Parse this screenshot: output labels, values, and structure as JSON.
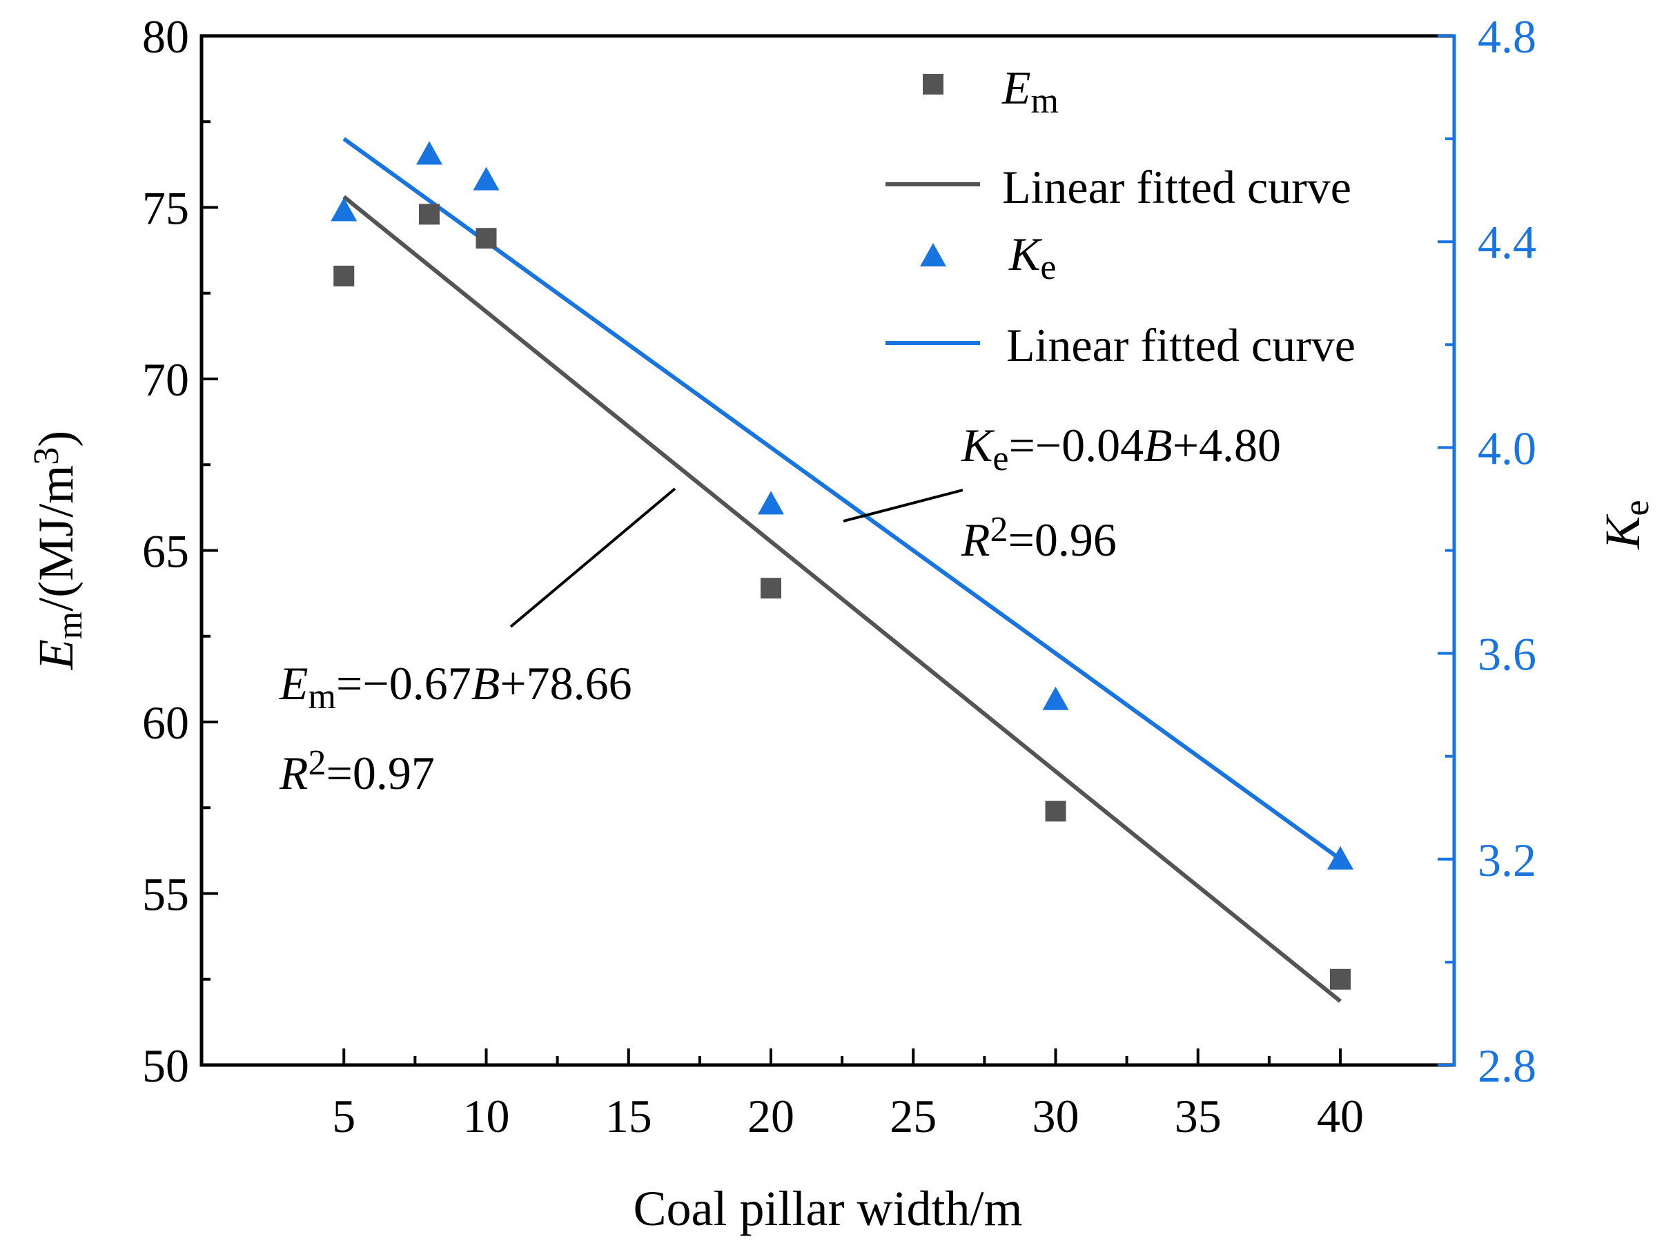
{
  "chart_data": {
    "type": "scatter",
    "x_axis": {
      "label": "Coal pillar width/m",
      "range": [
        0,
        44
      ],
      "ticks": [
        5,
        10,
        15,
        20,
        25,
        30,
        35,
        40
      ],
      "tick_labels": [
        "5",
        "10",
        "15",
        "20",
        "25",
        "30",
        "35",
        "40"
      ]
    },
    "y_left": {
      "label_main": "E",
      "label_sub": "m",
      "label_rest": "/(MJ/m",
      "label_sup": "3",
      "label_end": ")",
      "range": [
        50,
        80
      ],
      "ticks": [
        50,
        55,
        60,
        65,
        70,
        75,
        80
      ],
      "tick_labels": [
        "50",
        "55",
        "60",
        "65",
        "70",
        "75",
        "80"
      ]
    },
    "y_right": {
      "label_main": "K",
      "label_sub": "e",
      "range": [
        2.8,
        4.8
      ],
      "ticks": [
        2.8,
        3.2,
        3.6,
        4.0,
        4.4,
        4.8
      ],
      "tick_labels": [
        "2.8",
        "3.2",
        "3.6",
        "4.0",
        "4.4",
        "4.8"
      ],
      "color": "#1874e0"
    },
    "series": [
      {
        "name": "Em",
        "legend_main": "E",
        "legend_sub": "m",
        "marker": "square",
        "color": "#545454",
        "axis": "left",
        "x": [
          5,
          8,
          10,
          20,
          30,
          40
        ],
        "values": [
          73.0,
          74.8,
          74.1,
          63.9,
          57.4,
          52.5
        ]
      },
      {
        "name": "Ke",
        "legend_main": "K",
        "legend_sub": "e",
        "marker": "triangle",
        "color": "#1874e0",
        "axis": "right",
        "x": [
          5,
          8,
          10,
          20,
          30,
          40
        ],
        "values": [
          4.46,
          4.57,
          4.52,
          3.89,
          3.51,
          3.2
        ]
      }
    ],
    "fits": [
      {
        "series": "Em",
        "legend": "Linear fitted curve",
        "slope": -0.67,
        "intercept": 78.66,
        "x_range": [
          5,
          40
        ],
        "color": "#545454"
      },
      {
        "series": "Ke",
        "legend": "Linear fitted curve",
        "slope": -0.04,
        "intercept": 4.8,
        "x_range": [
          5,
          40
        ],
        "color": "#1874e0"
      }
    ],
    "annotations": [
      {
        "id": "ke",
        "var_main": "K",
        "var_sub": "e",
        "eq_mid": "=−0.04",
        "eq_var": "B",
        "eq_end": "+4.80",
        "r_main": "R",
        "r_sup": "2",
        "r_val": "=0.96"
      },
      {
        "id": "em",
        "var_main": "E",
        "var_sub": "m",
        "eq_mid": "=−0.67",
        "eq_var": "B",
        "eq_end": "+78.66",
        "r_main": "R",
        "r_sup": "2",
        "r_val": "=0.97"
      }
    ],
    "legend_position": "top-right"
  }
}
